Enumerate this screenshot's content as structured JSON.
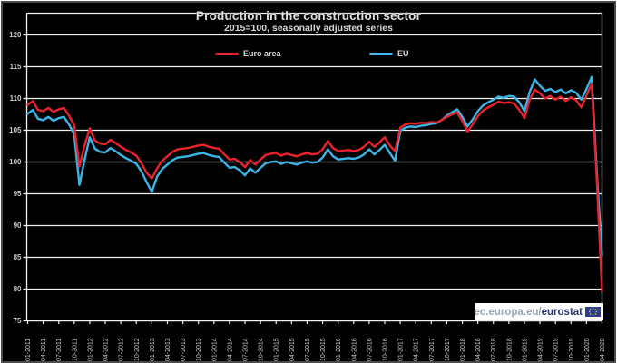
{
  "chart": {
    "title": "Production in the construction sector",
    "subtitle": "2015=100, seasonally adjusted series"
  },
  "watermark": {
    "prefix": "ec.europa.eu/",
    "brand": "eurostat",
    "flag_icon": "eu-flag"
  },
  "chart_data": {
    "type": "line",
    "title": "Production in the construction sector",
    "subtitle": "2015=100, seasonally adjusted series",
    "grid": true,
    "legend_position": "top",
    "ylim": [
      75,
      124
    ],
    "yticks": [
      120,
      115,
      110,
      105,
      100,
      95,
      90,
      85,
      80,
      75
    ],
    "x_monthly_points": 112,
    "x_label_every": 3,
    "x_labels": [
      "01-2011",
      "04-2011",
      "07-2011",
      "10-2011",
      "01-2012",
      "04-2012",
      "07-2012",
      "10-2012",
      "01-2013",
      "04-2013",
      "07-2013",
      "10-2013",
      "01-2014",
      "04-2014",
      "07-2014",
      "10-2014",
      "01-2015",
      "04-2015",
      "07-2015",
      "10-2015",
      "01-2016",
      "04-2016",
      "07-2016",
      "10-2016",
      "01-2017",
      "04-2017",
      "07-2017",
      "10-2017",
      "01-2018",
      "04-2018",
      "07-2018",
      "10-2018",
      "01-2019",
      "04-2019",
      "07-2019",
      "10-2019",
      "01-2020",
      "04-2020"
    ],
    "series": [
      {
        "name": "Euro area",
        "color": "#e8232b",
        "values": [
          109.0,
          109.6,
          108.2,
          108.0,
          108.5,
          107.9,
          108.3,
          108.5,
          107.3,
          105.8,
          99.3,
          102.6,
          105.3,
          103.4,
          102.9,
          102.8,
          103.5,
          103.0,
          102.4,
          101.9,
          101.5,
          101.0,
          99.8,
          98.3,
          97.4,
          99.0,
          100.2,
          100.9,
          101.6,
          102.0,
          102.1,
          102.2,
          102.4,
          102.6,
          102.7,
          102.4,
          102.2,
          102.1,
          101.2,
          100.4,
          100.5,
          100.0,
          99.2,
          100.3,
          99.6,
          100.4,
          101.1,
          101.3,
          101.4,
          101.0,
          101.3,
          101.1,
          100.9,
          101.2,
          101.4,
          101.2,
          101.3,
          102.0,
          103.3,
          102.2,
          101.7,
          101.8,
          101.9,
          101.7,
          101.9,
          102.4,
          103.2,
          102.4,
          103.1,
          103.9,
          102.6,
          101.7,
          105.4,
          105.9,
          106.1,
          106.0,
          106.2,
          106.1,
          106.3,
          106.2,
          106.6,
          107.1,
          107.5,
          107.8,
          106.5,
          104.8,
          105.9,
          107.2,
          108.1,
          108.6,
          109.0,
          109.5,
          109.3,
          109.4,
          109.2,
          108.2,
          106.9,
          109.8,
          111.4,
          110.8,
          110.0,
          110.4,
          109.8,
          110.3,
          109.6,
          110.2,
          109.7,
          108.6,
          110.5,
          112.3,
          97.0,
          79.7
        ]
      },
      {
        "name": "EU",
        "color": "#3ab5e6",
        "values": [
          107.6,
          108.2,
          106.8,
          106.6,
          107.1,
          106.5,
          106.9,
          107.1,
          105.9,
          104.4,
          96.4,
          100.3,
          103.9,
          102.1,
          101.6,
          101.5,
          102.2,
          101.7,
          101.1,
          100.6,
          100.2,
          99.7,
          98.5,
          96.8,
          95.3,
          97.7,
          98.9,
          99.6,
          100.3,
          100.7,
          100.8,
          100.9,
          101.1,
          101.3,
          101.4,
          101.1,
          100.9,
          100.8,
          99.9,
          99.1,
          99.2,
          98.7,
          97.9,
          99.0,
          98.3,
          99.1,
          99.8,
          100.0,
          100.1,
          99.7,
          100.0,
          99.8,
          99.6,
          99.9,
          100.1,
          99.9,
          100.0,
          100.7,
          102.0,
          100.9,
          100.4,
          100.5,
          100.6,
          100.5,
          100.7,
          101.2,
          102.0,
          101.2,
          101.9,
          102.7,
          101.4,
          100.2,
          104.9,
          105.4,
          105.6,
          105.5,
          105.7,
          105.8,
          106.0,
          106.1,
          106.6,
          107.3,
          107.8,
          108.3,
          107.1,
          105.6,
          106.7,
          108.0,
          108.9,
          109.4,
          109.8,
          110.3,
          110.1,
          110.4,
          110.3,
          109.4,
          108.0,
          111.0,
          113.0,
          112.0,
          111.2,
          111.5,
          111.0,
          111.4,
          110.8,
          111.3,
          110.9,
          109.8,
          111.5,
          113.4,
          98.2,
          85.3
        ]
      }
    ]
  }
}
